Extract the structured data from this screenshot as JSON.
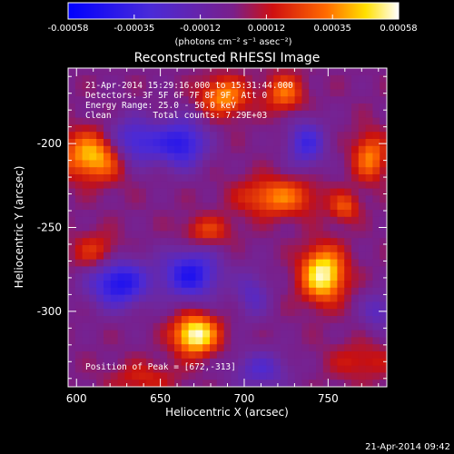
{
  "chart_data": {
    "type": "heatmap",
    "title": "Reconstructed RHESSI Image",
    "xlabel": "Heliocentric X (arcsec)",
    "ylabel": "Heliocentric Y (arcsec)",
    "xlim": [
      595,
      785
    ],
    "ylim": [
      -345,
      -155
    ],
    "x_ticks": [
      600,
      650,
      700,
      750
    ],
    "y_ticks": [
      -200,
      -250,
      -300
    ],
    "colorbar": {
      "colormap": "blue-purple-red-yellow-white",
      "min": -0.00058,
      "max": 0.00058,
      "tick_labels": [
        "-0.00058",
        "-0.00035",
        "-0.00012",
        "0.00012",
        "0.00035",
        "0.00058"
      ],
      "unit_label": "(photons cm⁻² s⁻¹ asec⁻²)"
    },
    "annotations": [
      "21-Apr-2014 15:29:16.000 to 15:31:44.000",
      "Detectors: 3F 5F 6F 7F 8F 9F, Att 0",
      "Energy Range: 25.0 - 50.0 keV",
      "Clean        Total counts: 7.29E+03"
    ],
    "peak_label": "Position of Peak = [672,-313]",
    "peak": {
      "x": 672,
      "y": -313
    },
    "sources": [
      {
        "x": 671,
        "y": -314,
        "sx": 9,
        "sy": 8,
        "amp": 1.0
      },
      {
        "x": 747,
        "y": -278,
        "sx": 9,
        "sy": 11,
        "amp": 0.95
      },
      {
        "x": 612,
        "y": -207,
        "sx": 14,
        "sy": 10,
        "amp": 0.8
      },
      {
        "x": 720,
        "y": -232,
        "sx": 16,
        "sy": 8,
        "amp": 0.55
      },
      {
        "x": 688,
        "y": -172,
        "sx": 10,
        "sy": 8,
        "amp": 0.6
      },
      {
        "x": 724,
        "y": -170,
        "sx": 8,
        "sy": 8,
        "amp": 0.5
      },
      {
        "x": 775,
        "y": -208,
        "sx": 7,
        "sy": 10,
        "amp": 0.55
      },
      {
        "x": 760,
        "y": -238,
        "sx": 6,
        "sy": 6,
        "amp": 0.4
      },
      {
        "x": 678,
        "y": -252,
        "sx": 10,
        "sy": 6,
        "amp": 0.35
      },
      {
        "x": 612,
        "y": -265,
        "sx": 10,
        "sy": 8,
        "amp": 0.35
      },
      {
        "x": 640,
        "y": -340,
        "sx": 14,
        "sy": 7,
        "amp": 0.25
      },
      {
        "x": 770,
        "y": -330,
        "sx": 14,
        "sy": 8,
        "amp": 0.25
      },
      {
        "x": 633,
        "y": -200,
        "sx": 12,
        "sy": 10,
        "amp": -0.7
      },
      {
        "x": 663,
        "y": -200,
        "sx": 10,
        "sy": 10,
        "amp": -0.7
      },
      {
        "x": 625,
        "y": -283,
        "sx": 12,
        "sy": 10,
        "amp": -0.8
      },
      {
        "x": 668,
        "y": -278,
        "sx": 12,
        "sy": 10,
        "amp": -0.75
      },
      {
        "x": 737,
        "y": -200,
        "sx": 8,
        "sy": 10,
        "amp": -0.55
      },
      {
        "x": 705,
        "y": -290,
        "sx": 7,
        "sy": 10,
        "amp": -0.35
      },
      {
        "x": 710,
        "y": -335,
        "sx": 12,
        "sy": 8,
        "amp": -0.4
      },
      {
        "x": 780,
        "y": -300,
        "sx": 7,
        "sy": 8,
        "amp": -0.35
      }
    ]
  },
  "footer": {
    "timestamp": "21-Apr-2014 09:42"
  }
}
